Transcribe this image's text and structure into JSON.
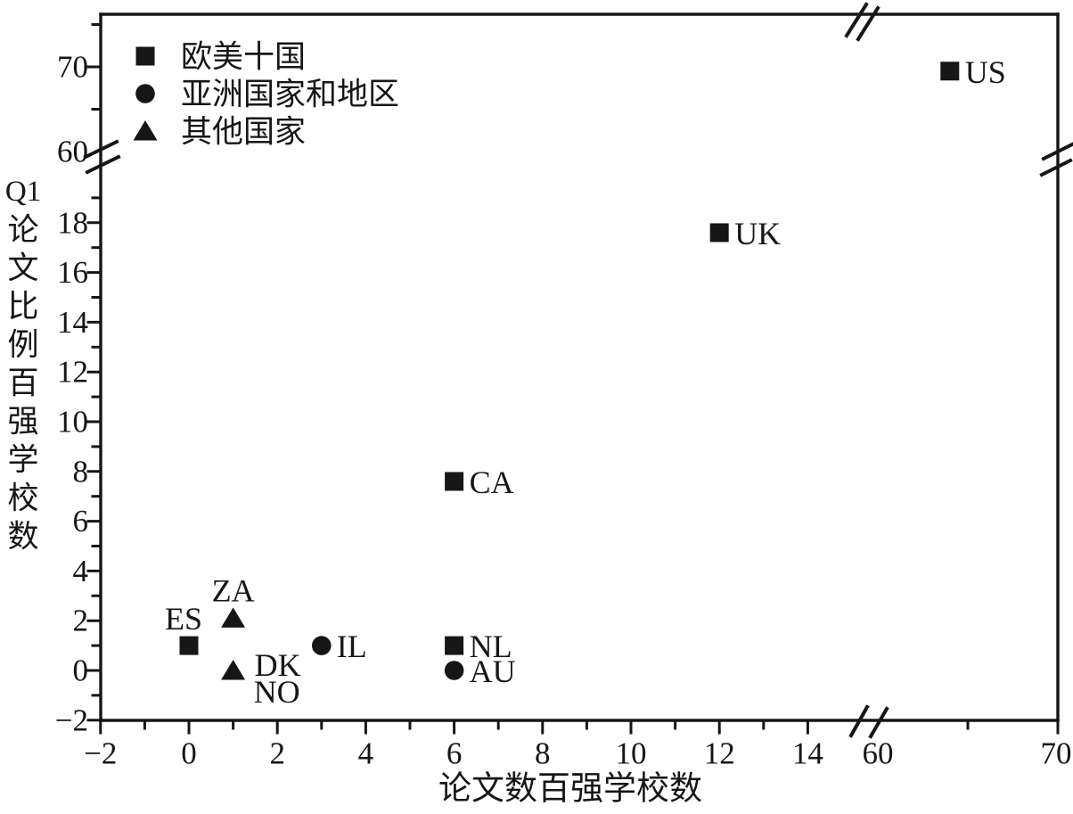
{
  "chart_data": {
    "type": "scatter",
    "title": "",
    "xlabel": "论文数百强学校数",
    "ylabel": "Q1论文比例百强学校数",
    "ylabel_chars": [
      "Q1",
      "论",
      "文",
      "比",
      "例",
      "百",
      "强",
      "学",
      "校",
      "数"
    ],
    "ink_color": "#161616",
    "background_color": "#ffffff",
    "grid": false,
    "axis_breaks": {
      "x": {
        "between": [
          14,
          60
        ],
        "style": "double-slash"
      },
      "y": {
        "between": [
          18,
          60
        ],
        "style": "double-slash"
      }
    },
    "x_axis": {
      "range_low_segment": [
        -2,
        15
      ],
      "range_high_segment": [
        60,
        70
      ],
      "major_ticks": [
        {
          "v": -2,
          "label": "−2"
        },
        {
          "v": 0,
          "label": "0"
        },
        {
          "v": 2,
          "label": "2"
        },
        {
          "v": 4,
          "label": "4"
        },
        {
          "v": 6,
          "label": "6"
        },
        {
          "v": 8,
          "label": "8"
        },
        {
          "v": 10,
          "label": "10"
        },
        {
          "v": 12,
          "label": "12"
        },
        {
          "v": 14,
          "label": "14"
        },
        {
          "v": 60,
          "label": "60"
        },
        {
          "v": 70,
          "label": "70"
        }
      ],
      "minor_ticks": [
        -1,
        1,
        3,
        5,
        7,
        9,
        11,
        13,
        65
      ]
    },
    "y_axis": {
      "range_low_segment": [
        -2,
        19
      ],
      "range_high_segment": [
        60,
        70
      ],
      "major_ticks": [
        {
          "v": -2,
          "label": "−2"
        },
        {
          "v": 0,
          "label": "0"
        },
        {
          "v": 2,
          "label": "2"
        },
        {
          "v": 4,
          "label": "4"
        },
        {
          "v": 6,
          "label": "6"
        },
        {
          "v": 8,
          "label": "8"
        },
        {
          "v": 10,
          "label": "10"
        },
        {
          "v": 12,
          "label": "12"
        },
        {
          "v": 14,
          "label": "14"
        },
        {
          "v": 16,
          "label": "16"
        },
        {
          "v": 18,
          "label": "18"
        },
        {
          "v": 60,
          "label": "60"
        },
        {
          "v": 70,
          "label": "70"
        }
      ],
      "minor_ticks": [
        -1,
        1,
        3,
        5,
        7,
        9,
        11,
        13,
        15,
        17,
        19,
        65,
        75
      ]
    },
    "legend": {
      "position": "top-left-inside",
      "items": [
        {
          "marker": "square",
          "label": "欧美十国"
        },
        {
          "marker": "circle",
          "label": "亚洲国家和地区"
        },
        {
          "marker": "triangle",
          "label": "其他国家"
        }
      ]
    },
    "points": [
      {
        "label": "ES",
        "group": "欧美十国",
        "marker": "square",
        "x": 0,
        "y": 1,
        "label_pos": "above-left"
      },
      {
        "label": "ZA",
        "group": "其他国家",
        "marker": "triangle",
        "x": 1,
        "y": 2.1,
        "label_pos": "above"
      },
      {
        "label": "DK",
        "group": "其他国家",
        "marker": "triangle",
        "x": 1,
        "y": 0,
        "label_pos": "right-up",
        "shares_marker_with": "NO"
      },
      {
        "label": "NO",
        "group": "其他国家",
        "marker": "triangle",
        "x": 1,
        "y": 0,
        "label_pos": "right-down",
        "shares_marker_with": "DK"
      },
      {
        "label": "IL",
        "group": "亚洲国家和地区",
        "marker": "circle",
        "x": 3,
        "y": 1,
        "label_pos": "right"
      },
      {
        "label": "NL",
        "group": "欧美十国",
        "marker": "square",
        "x": 6,
        "y": 1,
        "label_pos": "right"
      },
      {
        "label": "AU",
        "group": "亚洲国家和地区",
        "marker": "circle",
        "x": 6,
        "y": 0,
        "label_pos": "right"
      },
      {
        "label": "CA",
        "group": "欧美十国",
        "marker": "square",
        "x": 6,
        "y": 7.6,
        "label_pos": "right"
      },
      {
        "label": "UK",
        "group": "欧美十国",
        "marker": "square",
        "x": 12,
        "y": 17.6,
        "label_pos": "right"
      },
      {
        "label": "US",
        "group": "欧美十国",
        "marker": "square",
        "x": 64,
        "y": 69.5,
        "label_pos": "right"
      }
    ]
  }
}
